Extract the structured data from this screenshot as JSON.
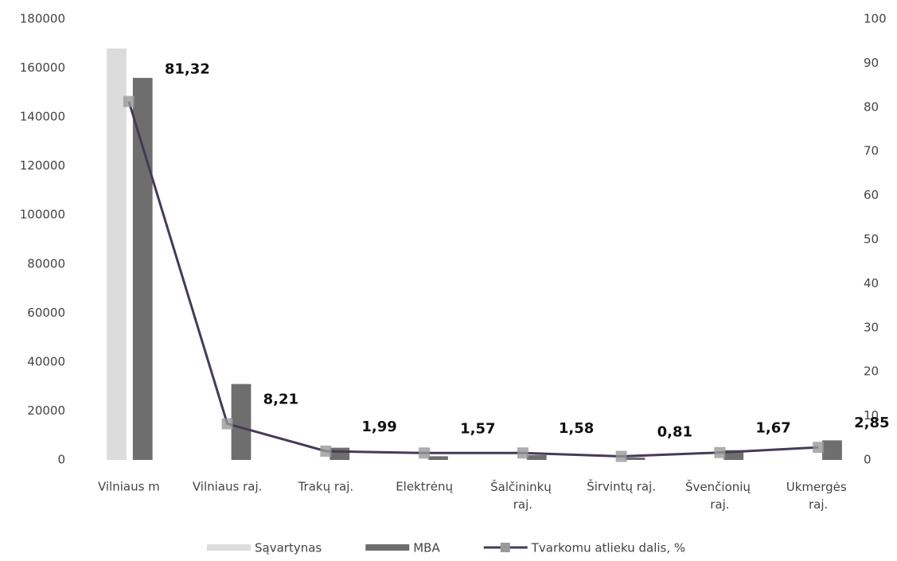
{
  "chart_data": {
    "type": "bar-line",
    "categories": [
      "Vilniaus m",
      "Vilniaus raj.",
      "Trakų raj.",
      "Elektrėnų",
      "Šalčininkų raj.",
      "Širvintų raj.",
      "Švenčionių raj.",
      "Ukmergės raj."
    ],
    "series": [
      {
        "name": "Sąvartynas",
        "color": "#dcdcdc",
        "type": "bar",
        "values": [
          168000,
          0,
          0,
          0,
          0,
          0,
          0,
          0
        ]
      },
      {
        "name": "MBA",
        "color": "#6e6e6e",
        "type": "bar",
        "values": [
          156000,
          31000,
          5000,
          1500,
          2000,
          1000,
          4000,
          8000
        ]
      },
      {
        "name": "Tvarkomu atlieku dalis, %",
        "color": "#463a58",
        "type": "line",
        "axis": "y2",
        "values": [
          81.32,
          8.21,
          1.99,
          1.57,
          1.58,
          0.81,
          1.67,
          2.85
        ],
        "value_labels": [
          "81,32",
          "8,21",
          "1,99",
          "1,57",
          "1,58",
          "0,81",
          "1,67",
          "2,85"
        ]
      }
    ],
    "ylim": [
      0,
      180000
    ],
    "yticks": [
      0,
      20000,
      40000,
      60000,
      80000,
      100000,
      120000,
      140000,
      160000,
      180000
    ],
    "y2lim": [
      0,
      100
    ],
    "y2ticks": [
      0,
      10,
      20,
      30,
      40,
      50,
      60,
      70,
      80,
      90,
      100
    ],
    "legend": "bottom"
  }
}
